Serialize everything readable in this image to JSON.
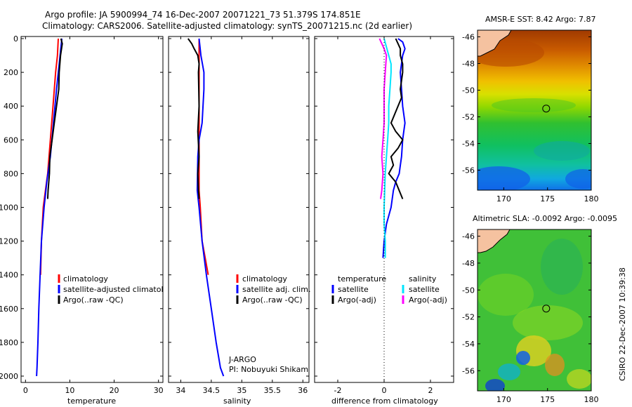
{
  "header": {
    "line1": "Argo profile: JA 5900994_74 16-Dec-2007 20071221_73 51.379S 174.851E",
    "line2": "Climatology: CARS2006. Satellite-adjusted climatology: synTS_20071215.nc (2d earlier)"
  },
  "credit": "CSIRO 22-Dec-2007 10:39:38",
  "colors": {
    "climatology": "#ff0000",
    "satellite": "#0000ff",
    "argo": "#000000",
    "sat_sal": "#00e5ff",
    "argo_sal": "#ff00ff",
    "land": "#f5c2a0"
  },
  "chart_data": [
    {
      "type": "line",
      "panel": "temperature",
      "xlabel": "temperature",
      "xlim": [
        -1,
        31
      ],
      "ylim": [
        2050,
        0
      ],
      "xticks": [
        "0",
        "10",
        "20",
        "30"
      ],
      "yticks": [
        "0",
        "200",
        "400",
        "600",
        "800",
        "1000",
        "1200",
        "1400",
        "1600",
        "1800",
        "2000"
      ],
      "series": [
        {
          "name": "climatology",
          "color": "#ff0000",
          "x": [
            7.4,
            7.2,
            6.8,
            6.2,
            5.6,
            5.0,
            4.5,
            4.0,
            3.6,
            3.4
          ],
          "y": [
            0,
            100,
            200,
            400,
            600,
            800,
            900,
            1000,
            1200,
            1400
          ]
        },
        {
          "name": "satellite-adjusted climatology",
          "color": "#0000ff",
          "x": [
            8.2,
            8.0,
            7.6,
            7.0,
            6.3,
            5.6,
            4.8,
            4.2,
            3.6,
            3.3,
            3.0,
            2.8,
            2.6,
            2.5
          ],
          "y": [
            0,
            50,
            150,
            300,
            500,
            700,
            850,
            1000,
            1200,
            1400,
            1600,
            1800,
            1950,
            2000
          ]
        },
        {
          "name": "Argo(..raw -QC)",
          "color": "#000000",
          "x": [
            8.0,
            8.3,
            7.9,
            7.6,
            7.5,
            7.0,
            6.5,
            6.0,
            5.5,
            5.4,
            5.1,
            5.0
          ],
          "y": [
            0,
            30,
            100,
            200,
            300,
            400,
            500,
            600,
            700,
            800,
            900,
            950
          ]
        }
      ],
      "legend": [
        "climatology",
        "satellite-adjusted climatology",
        "Argo(..raw -QC)"
      ]
    },
    {
      "type": "line",
      "panel": "salinity",
      "xlabel": "salinity",
      "xlim": [
        33.8,
        36.1
      ],
      "ylim": [
        2050,
        0
      ],
      "xticks": [
        "34",
        "34.5",
        "35",
        "35.5",
        "36"
      ],
      "series": [
        {
          "name": "climatology",
          "color": "#ff0000",
          "x": [
            34.3,
            34.3,
            34.3,
            34.3,
            34.3,
            34.3,
            34.32,
            34.35,
            34.4,
            34.45
          ],
          "y": [
            0,
            200,
            300,
            500,
            700,
            900,
            1000,
            1200,
            1300,
            1400
          ]
        },
        {
          "name": "satellite adj. clim.",
          "color": "#0000ff",
          "x": [
            34.3,
            34.33,
            34.38,
            34.38,
            34.35,
            34.3,
            34.28,
            34.27,
            34.3,
            34.35,
            34.42,
            34.5,
            34.58,
            34.65,
            34.7
          ],
          "y": [
            0,
            100,
            200,
            300,
            500,
            600,
            700,
            900,
            1000,
            1200,
            1400,
            1600,
            1800,
            1950,
            2000
          ]
        },
        {
          "name": "Argo(..raw -QC)",
          "color": "#000000",
          "x": [
            34.12,
            34.18,
            34.22,
            34.28,
            34.3,
            34.29,
            34.3,
            34.28,
            34.3,
            34.28,
            34.29,
            34.3
          ],
          "y": [
            0,
            30,
            60,
            100,
            150,
            200,
            400,
            550,
            700,
            800,
            900,
            950
          ]
        }
      ],
      "legend": [
        "climatology",
        "satellite adj. clim.",
        "Argo(..raw -QC)"
      ],
      "annotation": [
        "J-ARGO",
        "PI: Nobuyuki Shikama"
      ]
    },
    {
      "type": "line",
      "panel": "difference",
      "xlabel": "difference from climatology",
      "xlim": [
        -3,
        3
      ],
      "ylim": [
        2050,
        0
      ],
      "xticks": [
        "-2",
        "0",
        "2"
      ],
      "series": [
        {
          "name": "temperature satellite",
          "color": "#0000ff",
          "x": [
            0.6,
            0.8,
            0.9,
            0.8,
            0.7,
            0.75,
            0.8,
            0.9,
            0.85,
            0.8,
            0.75,
            0.7,
            0.65,
            0.5,
            0.4,
            0.3,
            0.2,
            0.1,
            0.05,
            0.0,
            -0.05
          ],
          "y": [
            0,
            20,
            60,
            100,
            200,
            300,
            400,
            500,
            550,
            600,
            700,
            750,
            800,
            850,
            900,
            1000,
            1050,
            1100,
            1150,
            1200,
            1300
          ]
        },
        {
          "name": "temperature Argo(-adj)",
          "color": "#000000",
          "x": [
            0.5,
            0.6,
            0.7,
            0.7,
            0.8,
            0.8,
            0.7,
            0.75,
            0.6,
            0.3,
            0.5,
            0.8,
            0.6,
            0.3,
            0.4,
            0.2,
            0.5,
            0.8
          ],
          "y": [
            0,
            30,
            60,
            100,
            150,
            200,
            300,
            350,
            400,
            500,
            550,
            600,
            650,
            700,
            750,
            800,
            850,
            950
          ]
        },
        {
          "name": "salinity satellite",
          "color": "#00e5ff",
          "x": [
            0.0,
            0.1,
            0.2,
            0.3,
            0.3,
            0.25,
            0.2,
            0.2,
            0.15,
            0.1,
            0.05,
            0.0,
            0.0,
            0.05,
            0.05
          ],
          "y": [
            0,
            50,
            100,
            150,
            200,
            300,
            400,
            500,
            600,
            700,
            800,
            1000,
            1100,
            1200,
            1300
          ]
        },
        {
          "name": "salinity Argo(-adj)",
          "color": "#ff00ff",
          "x": [
            -0.2,
            -0.1,
            0.0,
            0.1,
            0.05,
            0.0,
            0.0,
            0.0,
            -0.05,
            -0.1,
            -0.05,
            -0.1,
            -0.15
          ],
          "y": [
            0,
            30,
            60,
            100,
            200,
            300,
            400,
            500,
            600,
            700,
            800,
            900,
            950
          ]
        }
      ],
      "legend_headers": [
        "temperature",
        "salinity"
      ],
      "legend": [
        "satellite",
        "Argo(-adj)",
        "satellite",
        "Argo(-adj)"
      ]
    },
    {
      "type": "heatmap",
      "panel": "sst_map",
      "title": "AMSR-E SST: 8.42 Argo: 7.87",
      "xlim": [
        167,
        180
      ],
      "ylim": [
        -57.5,
        -45.5
      ],
      "xticks": [
        "170",
        "175",
        "180"
      ],
      "yticks": [
        "-46",
        "-48",
        "-50",
        "-52",
        "-54",
        "-56"
      ],
      "float_position": [
        174.851,
        -51.379
      ]
    },
    {
      "type": "heatmap",
      "panel": "sla_map",
      "title": "Altimetric SLA: -0.0092 Argo: -0.0095",
      "xlim": [
        167,
        180
      ],
      "ylim": [
        -57.5,
        -45.5
      ],
      "xticks": [
        "170",
        "175",
        "180"
      ],
      "yticks": [
        "-46",
        "-48",
        "-50",
        "-52",
        "-54",
        "-56"
      ],
      "float_position": [
        174.851,
        -51.379
      ]
    }
  ]
}
